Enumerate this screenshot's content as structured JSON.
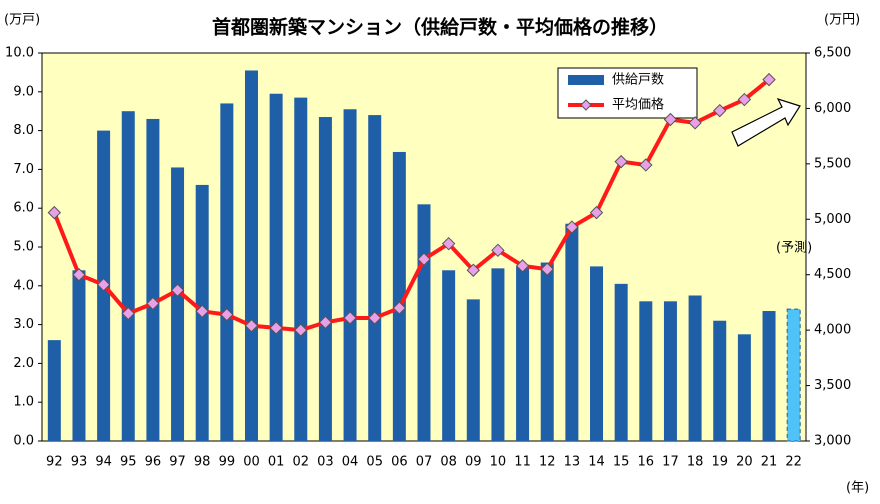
{
  "chart_data": {
    "type": "bar_line",
    "title": "首都圏新築マンション（供給戸数・平均価格の推移）",
    "y_unit": "(万戸)",
    "y2_unit": "(万円)",
    "x_unit": "(年)",
    "forecast_label": "(予測)",
    "categories": [
      "92",
      "93",
      "94",
      "95",
      "96",
      "97",
      "98",
      "99",
      "00",
      "01",
      "02",
      "03",
      "04",
      "05",
      "06",
      "07",
      "08",
      "09",
      "10",
      "11",
      "12",
      "13",
      "14",
      "15",
      "16",
      "17",
      "18",
      "19",
      "20",
      "21",
      "22"
    ],
    "series": [
      {
        "name": "供給戸数",
        "type": "bar",
        "color": "#1f5fa8",
        "forecast_color": "#4fc3f7",
        "values": [
          2.6,
          4.4,
          8.0,
          8.5,
          8.3,
          7.05,
          6.6,
          8.7,
          9.55,
          8.95,
          8.85,
          8.35,
          8.55,
          8.4,
          7.45,
          6.1,
          4.4,
          3.65,
          4.45,
          4.5,
          4.6,
          5.6,
          4.5,
          4.05,
          3.6,
          3.6,
          3.75,
          3.1,
          2.75,
          3.35,
          3.4
        ]
      },
      {
        "name": "平均価格",
        "type": "line",
        "axis": "y2",
        "color": "#ff1a1a",
        "marker_color": "#e8a0e8",
        "values": [
          5060,
          4500,
          4410,
          4150,
          4240,
          4360,
          4170,
          4140,
          4040,
          4020,
          4000,
          4070,
          4110,
          4110,
          4200,
          4640,
          4780,
          4540,
          4720,
          4580,
          4550,
          4930,
          5060,
          5520,
          5490,
          5900,
          5870,
          5980,
          6080,
          6260,
          null
        ]
      }
    ],
    "ylim": [
      0,
      10
    ],
    "yticks": [
      {
        "value": 0,
        "label": "0.0"
      },
      {
        "value": 1,
        "label": "1.0"
      },
      {
        "value": 2,
        "label": "2.0"
      },
      {
        "value": 3,
        "label": "3.0"
      },
      {
        "value": 4,
        "label": "4.0"
      },
      {
        "value": 5,
        "label": "5.0"
      },
      {
        "value": 6,
        "label": "6.0"
      },
      {
        "value": 7,
        "label": "7.0"
      },
      {
        "value": 8,
        "label": "8.0"
      },
      {
        "value": 9,
        "label": "9.0"
      },
      {
        "value": 10,
        "label": "10.0"
      }
    ],
    "y2lim": [
      3000,
      6500
    ],
    "y2ticks": [
      {
        "value": 3000,
        "label": "3,000"
      },
      {
        "value": 3500,
        "label": "3,500"
      },
      {
        "value": 4000,
        "label": "4,000"
      },
      {
        "value": 4500,
        "label": "4,500"
      },
      {
        "value": 5000,
        "label": "5,000"
      },
      {
        "value": 5500,
        "label": "5,500"
      },
      {
        "value": 6000,
        "label": "6,000"
      },
      {
        "value": 6500,
        "label": "6,500"
      }
    ],
    "plot_background": "#ffffc0",
    "legend": "upper right",
    "grid": false
  }
}
